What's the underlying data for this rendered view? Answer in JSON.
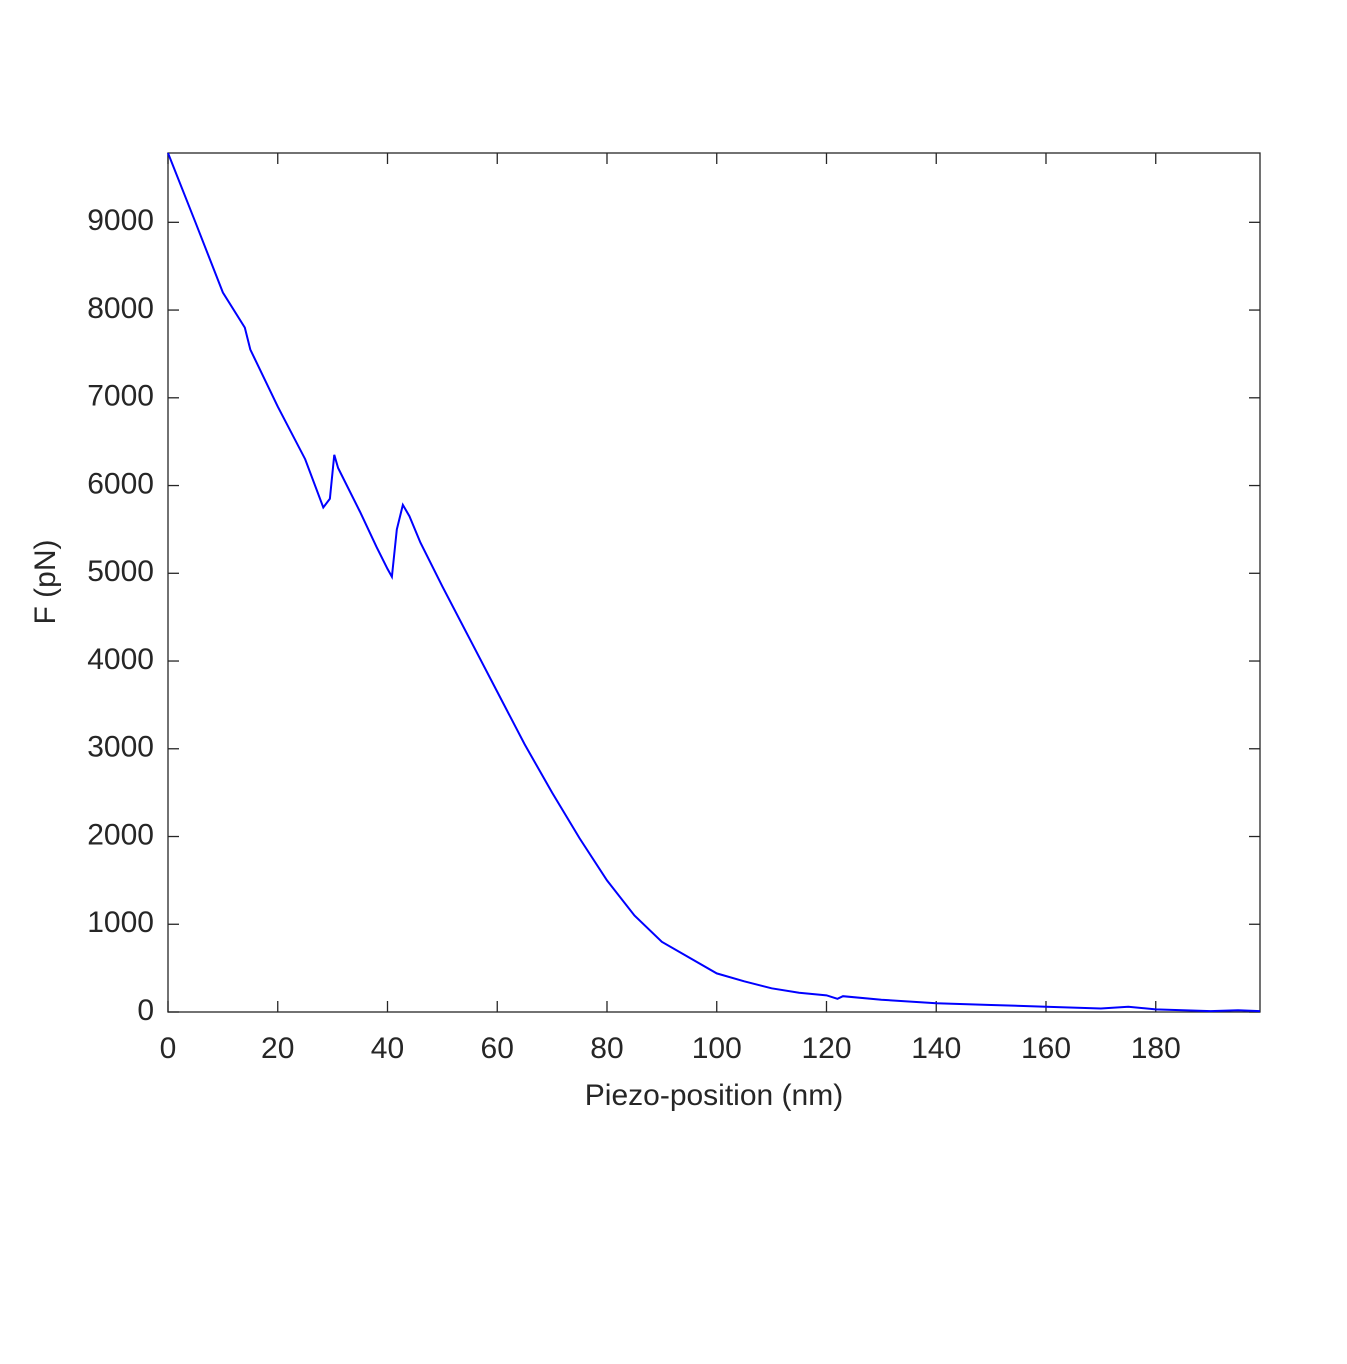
{
  "chart_data": {
    "type": "line",
    "xlabel": "Piezo-position (nm)",
    "ylabel": "F (pN)",
    "x": [
      0,
      5,
      10,
      14,
      15,
      20,
      25,
      28.3,
      29.5,
      30.3,
      31,
      35,
      38,
      40,
      40.8,
      41.7,
      42.8,
      44,
      46,
      50,
      55,
      60,
      65,
      70,
      75,
      80,
      85,
      90,
      95,
      100,
      105,
      110,
      115,
      120,
      122,
      123,
      130,
      140,
      150,
      160,
      170,
      175,
      180,
      190,
      195,
      199
    ],
    "series": [
      {
        "color": "#0000ff",
        "values": [
          9790,
          9000,
          8200,
          7800,
          7550,
          6900,
          6300,
          5750,
          5850,
          6350,
          6200,
          5700,
          5300,
          5050,
          4960,
          5500,
          5780,
          5650,
          5350,
          4850,
          4250,
          3650,
          3050,
          2500,
          1980,
          1500,
          1100,
          800,
          620,
          440,
          350,
          270,
          220,
          190,
          150,
          180,
          140,
          100,
          80,
          60,
          40,
          60,
          30,
          10,
          20,
          10
        ]
      }
    ],
    "xlim": [
      0,
      199
    ],
    "ylim": [
      0,
      9790
    ],
    "xticks": [
      0,
      20,
      40,
      60,
      80,
      100,
      120,
      140,
      160,
      180
    ],
    "yticks": [
      0,
      1000,
      2000,
      3000,
      4000,
      5000,
      6000,
      7000,
      8000,
      9000
    ],
    "grid": false
  }
}
